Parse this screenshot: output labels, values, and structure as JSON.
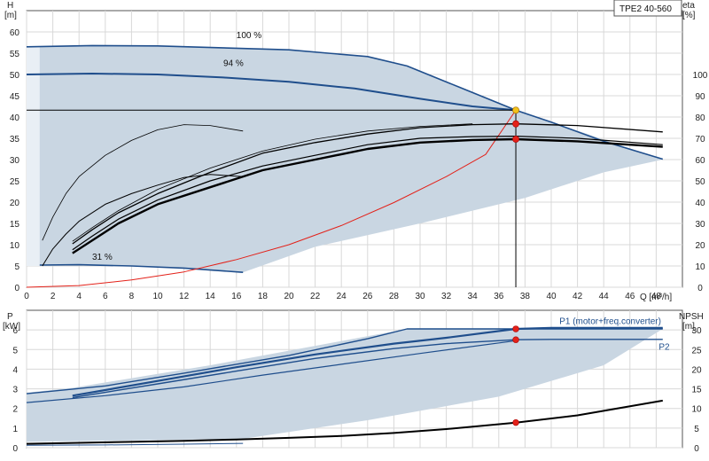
{
  "chart_data": [
    {
      "type": "line",
      "model": "TPE2 40-560",
      "ylabel_left": [
        "H",
        "[m]"
      ],
      "ylabel_right": [
        "eta",
        "[%]"
      ],
      "xlabel": "Q [m³/h]",
      "x_ticks": [
        0,
        2,
        4,
        6,
        8,
        10,
        12,
        14,
        16,
        18,
        20,
        22,
        24,
        26,
        28,
        30,
        32,
        34,
        36,
        38,
        40,
        42,
        44,
        46,
        48
      ],
      "y_ticks": [
        0,
        5,
        10,
        15,
        20,
        25,
        30,
        35,
        40,
        45,
        50,
        55,
        60
      ],
      "eta_ticks": [
        0,
        10,
        20,
        30,
        40,
        50,
        60,
        70,
        80,
        90,
        100
      ],
      "xlim": [
        0,
        50
      ],
      "ylim": [
        0,
        65
      ],
      "eta_lim": [
        0,
        130
      ],
      "grid": true,
      "curve_labels": [
        {
          "text": "100 %",
          "x": 16.0,
          "y": 58.5
        },
        {
          "text": "94 %",
          "x": 15.0,
          "y": 52.0
        },
        {
          "text": "31 %",
          "x": 5.0,
          "y": 6.5
        }
      ],
      "envelope": [
        [
          1.0,
          5.0
        ],
        [
          1.0,
          56.5
        ],
        [
          3.5,
          56.8
        ],
        [
          10.0,
          56.8
        ],
        [
          20.0,
          55.8
        ],
        [
          26.0,
          54.0
        ],
        [
          29.0,
          52.0
        ],
        [
          33.0,
          47.0
        ],
        [
          37.5,
          41.5
        ],
        [
          48.5,
          30.0
        ],
        [
          44.0,
          27.0
        ],
        [
          38.0,
          21.0
        ],
        [
          30.0,
          15.0
        ],
        [
          22.0,
          9.5
        ],
        [
          16.5,
          3.5
        ],
        [
          12.0,
          4.6
        ],
        [
          6.0,
          5.3
        ]
      ],
      "series": [
        {
          "values": [
            [
              0,
              56.5
            ],
            [
              5,
              56.8
            ],
            [
              10,
              56.7
            ],
            [
              20,
              55.8
            ],
            [
              26,
              54.2
            ],
            [
              29,
              52.0
            ],
            [
              33,
              47.0
            ],
            [
              37.3,
              41.6
            ],
            [
              40,
              38.8
            ],
            [
              44,
              34.3
            ],
            [
              48.5,
              30.1
            ]
          ]
        },
        {
          "values": [
            [
              0,
              50.0
            ],
            [
              5,
              50.2
            ],
            [
              10,
              50.0
            ],
            [
              15,
              49.3
            ],
            [
              20,
              48.3
            ],
            [
              25,
              46.7
            ],
            [
              30,
              44.3
            ],
            [
              34,
              42.5
            ],
            [
              37.3,
              41.6
            ]
          ]
        },
        {
          "values": [
            [
              1.0,
              5.2
            ],
            [
              4,
              5.3
            ],
            [
              8,
              5.0
            ],
            [
              12,
              4.5
            ],
            [
              16.5,
              3.5
            ]
          ]
        },
        {
          "values": [
            [
              0,
              41.6
            ],
            [
              37.3,
              41.6
            ]
          ]
        },
        {
          "values": [
            [
              0,
              0
            ],
            [
              4,
              0.4
            ],
            [
              8,
              1.7
            ],
            [
              12,
              3.6
            ],
            [
              16,
              6.5
            ],
            [
              20,
              10.0
            ],
            [
              24,
              14.5
            ],
            [
              28,
              19.9
            ],
            [
              32,
              26.0
            ],
            [
              35,
              31.2
            ],
            [
              37.3,
              41.6
            ]
          ]
        },
        {
          "values": [
            [
              3.5,
              8.0
            ],
            [
              5,
              11
            ],
            [
              7,
              15
            ],
            [
              10,
              19.5
            ],
            [
              14,
              23.5
            ],
            [
              18,
              27.5
            ],
            [
              22,
              30
            ],
            [
              26,
              32.5
            ],
            [
              30,
              34
            ],
            [
              34,
              34.6
            ],
            [
              37.3,
              34.8
            ],
            [
              42,
              34.3
            ],
            [
              48.5,
              33.0
            ]
          ]
        },
        {
          "values": [
            [
              3.5,
              8.8
            ],
            [
              5,
              12
            ],
            [
              7,
              16
            ],
            [
              10,
              20.5
            ],
            [
              14,
              25
            ],
            [
              18,
              28.5
            ],
            [
              22,
              31
            ],
            [
              26,
              33.5
            ],
            [
              30,
              35
            ],
            [
              34,
              35.4
            ],
            [
              37.3,
              35.5
            ],
            [
              42,
              35
            ],
            [
              48.5,
              33.5
            ]
          ]
        },
        {
          "values": [
            [
              3.5,
              10.2
            ],
            [
              5,
              13.5
            ],
            [
              7,
              17.5
            ],
            [
              10,
              22
            ],
            [
              14,
              27
            ],
            [
              18,
              31.5
            ],
            [
              22,
              34
            ],
            [
              26,
              36
            ],
            [
              30,
              37.5
            ],
            [
              34,
              38.2
            ],
            [
              37.3,
              38.4
            ],
            [
              42,
              38
            ],
            [
              48.5,
              36.5
            ]
          ]
        },
        {
          "values": [
            [
              3.5,
              10.8
            ],
            [
              5,
              14
            ],
            [
              7,
              18
            ],
            [
              10,
              23
            ],
            [
              14,
              28
            ],
            [
              18,
              32
            ],
            [
              22,
              34.8
            ],
            [
              26,
              36.7
            ],
            [
              30,
              37.8
            ],
            [
              34,
              38.4
            ]
          ]
        },
        {
          "values": [
            [
              1.2,
              5.0
            ],
            [
              2,
              9
            ],
            [
              3,
              12.5
            ],
            [
              4,
              15.5
            ],
            [
              6,
              19.5
            ],
            [
              8,
              22
            ],
            [
              10,
              24
            ],
            [
              12,
              25.8
            ],
            [
              14,
              26.5
            ],
            [
              16.5,
              26.0
            ]
          ]
        },
        {
          "values": [
            [
              1.2,
              11.0
            ],
            [
              2,
              16.5
            ],
            [
              3,
              22
            ],
            [
              4,
              26
            ],
            [
              6,
              31
            ],
            [
              8,
              34.5
            ],
            [
              10,
              37
            ],
            [
              12,
              38.2
            ],
            [
              14,
              38.0
            ],
            [
              16.5,
              36.7
            ]
          ]
        }
      ],
      "markers": [
        {
          "x": 37.3,
          "y": 41.6,
          "color": "#f2c21b"
        },
        {
          "x": 37.3,
          "y": 38.4,
          "color": "#e32119"
        },
        {
          "x": 37.3,
          "y": 34.8,
          "color": "#e32119"
        }
      ],
      "colors": {
        "envelope": "#c9d6e2",
        "light_band": "#e9eff5",
        "curve_blue": "#1f4e8c",
        "system_curve": "#e32119",
        "grid": "#d8d8d8"
      }
    },
    {
      "type": "line",
      "ylabel_left": [
        "P",
        "[kW]"
      ],
      "ylabel_right": [
        "NPSH",
        "[m]"
      ],
      "y_ticks": [
        0,
        1,
        2,
        3,
        4,
        5,
        6
      ],
      "npsh_ticks": [
        0,
        5,
        10,
        15,
        20,
        25,
        30
      ],
      "xlim": [
        0,
        50
      ],
      "ylim": [
        0,
        7
      ],
      "npsh_lim": [
        0,
        35
      ],
      "grid": true,
      "series_labels": [
        {
          "text": "P1 (motor+freq.converter)",
          "x": 44.5,
          "y": 6.3
        },
        {
          "text": "P2",
          "x": 48.2,
          "y": 5.0
        }
      ],
      "envelope": [
        [
          0,
          2.8
        ],
        [
          3.5,
          3.05
        ],
        [
          14,
          4.2
        ],
        [
          29,
          6.05
        ],
        [
          48.5,
          6.05
        ],
        [
          44.0,
          4.2
        ],
        [
          36.0,
          2.6
        ],
        [
          26.0,
          1.4
        ],
        [
          16.5,
          0.45
        ],
        [
          6.0,
          0.35
        ],
        [
          0,
          0.3
        ]
      ],
      "series": [
        {
          "values": [
            [
              0,
              2.75
            ],
            [
              6,
              3.15
            ],
            [
              12,
              3.8
            ],
            [
              20,
              4.7
            ],
            [
              26,
              5.55
            ],
            [
              29,
              6.05
            ],
            [
              48.5,
              6.05
            ]
          ]
        },
        {
          "values": [
            [
              3.5,
              2.65
            ],
            [
              10,
              3.4
            ],
            [
              16,
              4.1
            ],
            [
              22,
              4.75
            ],
            [
              28,
              5.3
            ],
            [
              32,
              5.6
            ],
            [
              37.3,
              6.05
            ],
            [
              40,
              6.1
            ],
            [
              48.5,
              6.1
            ]
          ]
        },
        {
          "values": [
            [
              3.5,
              2.55
            ],
            [
              10,
              3.25
            ],
            [
              16,
              3.9
            ],
            [
              22,
              4.55
            ],
            [
              28,
              5.05
            ],
            [
              32,
              5.3
            ],
            [
              37.3,
              5.5
            ],
            [
              40,
              5.52
            ],
            [
              48.5,
              5.52
            ]
          ]
        },
        {
          "values": [
            [
              0,
              2.3
            ],
            [
              6,
              2.65
            ],
            [
              12,
              3.1
            ],
            [
              18,
              3.7
            ],
            [
              24,
              4.25
            ],
            [
              30,
              4.8
            ],
            [
              37.3,
              5.45
            ]
          ]
        },
        {
          "values": [
            [
              0,
              0.2
            ],
            [
              4,
              0.25
            ],
            [
              8,
              0.3
            ],
            [
              12,
              0.35
            ],
            [
              16,
              0.42
            ],
            [
              20,
              0.5
            ],
            [
              24,
              0.6
            ],
            [
              28,
              0.75
            ],
            [
              32,
              0.95
            ],
            [
              37.3,
              1.28
            ],
            [
              42,
              1.65
            ],
            [
              48.5,
              2.4
            ]
          ]
        },
        {
          "values": [
            [
              0,
              0.12
            ],
            [
              6,
              0.14
            ],
            [
              12,
              0.18
            ],
            [
              16.5,
              0.22
            ]
          ]
        }
      ],
      "markers": [
        {
          "x": 37.3,
          "y": 6.05,
          "color": "#e32119"
        },
        {
          "x": 37.3,
          "y": 5.5,
          "color": "#e32119"
        },
        {
          "x": 37.3,
          "y": 1.28,
          "color": "#e32119"
        }
      ]
    }
  ]
}
